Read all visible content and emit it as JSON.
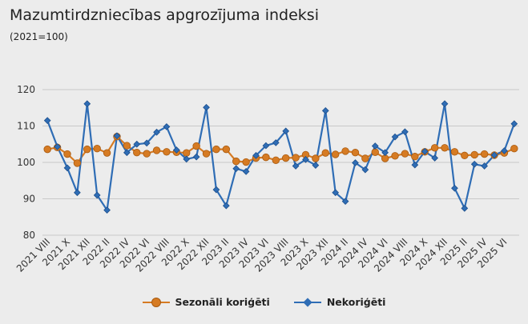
{
  "header": {
    "title": "Mazumtirdzniecības apgrozījuma indeksi",
    "subtitle": "(2021=100)"
  },
  "legend": {
    "series_0": "Sezonāli koriģēti",
    "series_1": "Nekoriģēti"
  },
  "colors": {
    "seasonal": "#d67b23",
    "seasonal_edge": "#a85a10",
    "unadjusted": "#2f6db5",
    "unadjusted_edge": "#1d4f8c",
    "grid": "#c8c8c8",
    "background": "#ececec"
  },
  "chart_data": {
    "type": "line",
    "title": "Mazumtirdzniecības apgrozījuma indeksi",
    "subtitle": "(2021=100)",
    "xlabel": "",
    "ylabel": "",
    "ylim": [
      80,
      120
    ],
    "yticks": [
      80,
      90,
      100,
      110,
      120
    ],
    "grid": true,
    "legend_position": "bottom",
    "x": [
      "2021 VIII",
      "2021 IX",
      "2021 X",
      "2021 XI",
      "2021 XII",
      "2022 I",
      "2022 II",
      "2022 III",
      "2022 IV",
      "2022 V",
      "2022 VI",
      "2022 VII",
      "2022 VIII",
      "2022 IX",
      "2022 X",
      "2022 XI",
      "2022 XII",
      "2023 I",
      "2023 II",
      "2023 III",
      "2023 IV",
      "2023 V",
      "2023 VI",
      "2023 VII",
      "2023 VIII",
      "2023 IX",
      "2023 X",
      "2023 XI",
      "2023 XII",
      "2024 I",
      "2024 II",
      "2024 III",
      "2024 IV",
      "2024 V",
      "2024 VI",
      "2024 VII",
      "2024 VIII",
      "2024 IX",
      "2024 X",
      "2024 XI",
      "2024 XII",
      "2025 I",
      "2025 II",
      "2025 III",
      "2025 IV",
      "2025 V",
      "2025 VI",
      "2025 VII"
    ],
    "x_tick_labels": [
      "2021 VIII",
      "2021 X",
      "2021 XII",
      "2022 II",
      "2022 IV",
      "2022 VI",
      "2022 VIII",
      "2022 X",
      "2022 XII",
      "2023 II",
      "2023 IV",
      "2023 VI",
      "2023 VIII",
      "2023 X",
      "2023 XII",
      "2024 II",
      "2024 IV",
      "2024 VI",
      "2024 VIII",
      "2024 X",
      "2024 XII",
      "2025 II",
      "2025 IV",
      "2025 VI"
    ],
    "series": [
      {
        "name": "Sezonāli koriģēti",
        "marker": "circle",
        "values": [
          103.6,
          104.1,
          102.3,
          99.8,
          103.6,
          103.8,
          102.6,
          107.1,
          104.6,
          102.7,
          102.4,
          103.3,
          102.9,
          102.8,
          102.6,
          104.5,
          102.4,
          103.6,
          103.6,
          100.3,
          100.1,
          101.2,
          101.4,
          100.6,
          101.2,
          101.3,
          102.1,
          101.1,
          102.6,
          102.2,
          103.1,
          102.7,
          101.1,
          102.8,
          101.1,
          101.8,
          102.4,
          101.6,
          102.9,
          104.0,
          104.0,
          102.9,
          101.9,
          102.1,
          102.3,
          102.0,
          102.6,
          103.8
        ]
      },
      {
        "name": "Nekoriģēti",
        "marker": "diamond",
        "values": [
          111.5,
          104.3,
          98.5,
          91.7,
          116.1,
          91.0,
          86.9,
          107.3,
          102.7,
          105.0,
          105.3,
          108.3,
          109.8,
          103.4,
          100.9,
          101.5,
          115.1,
          92.5,
          88.1,
          98.3,
          97.5,
          101.9,
          104.6,
          105.4,
          108.6,
          99.0,
          100.8,
          99.2,
          114.2,
          91.7,
          89.3,
          99.9,
          98.0,
          104.5,
          102.7,
          107.0,
          108.4,
          99.3,
          103.0,
          101.2,
          116.1,
          92.9,
          87.4,
          99.5,
          99.0,
          102.0,
          103.2,
          110.6
        ]
      }
    ]
  }
}
